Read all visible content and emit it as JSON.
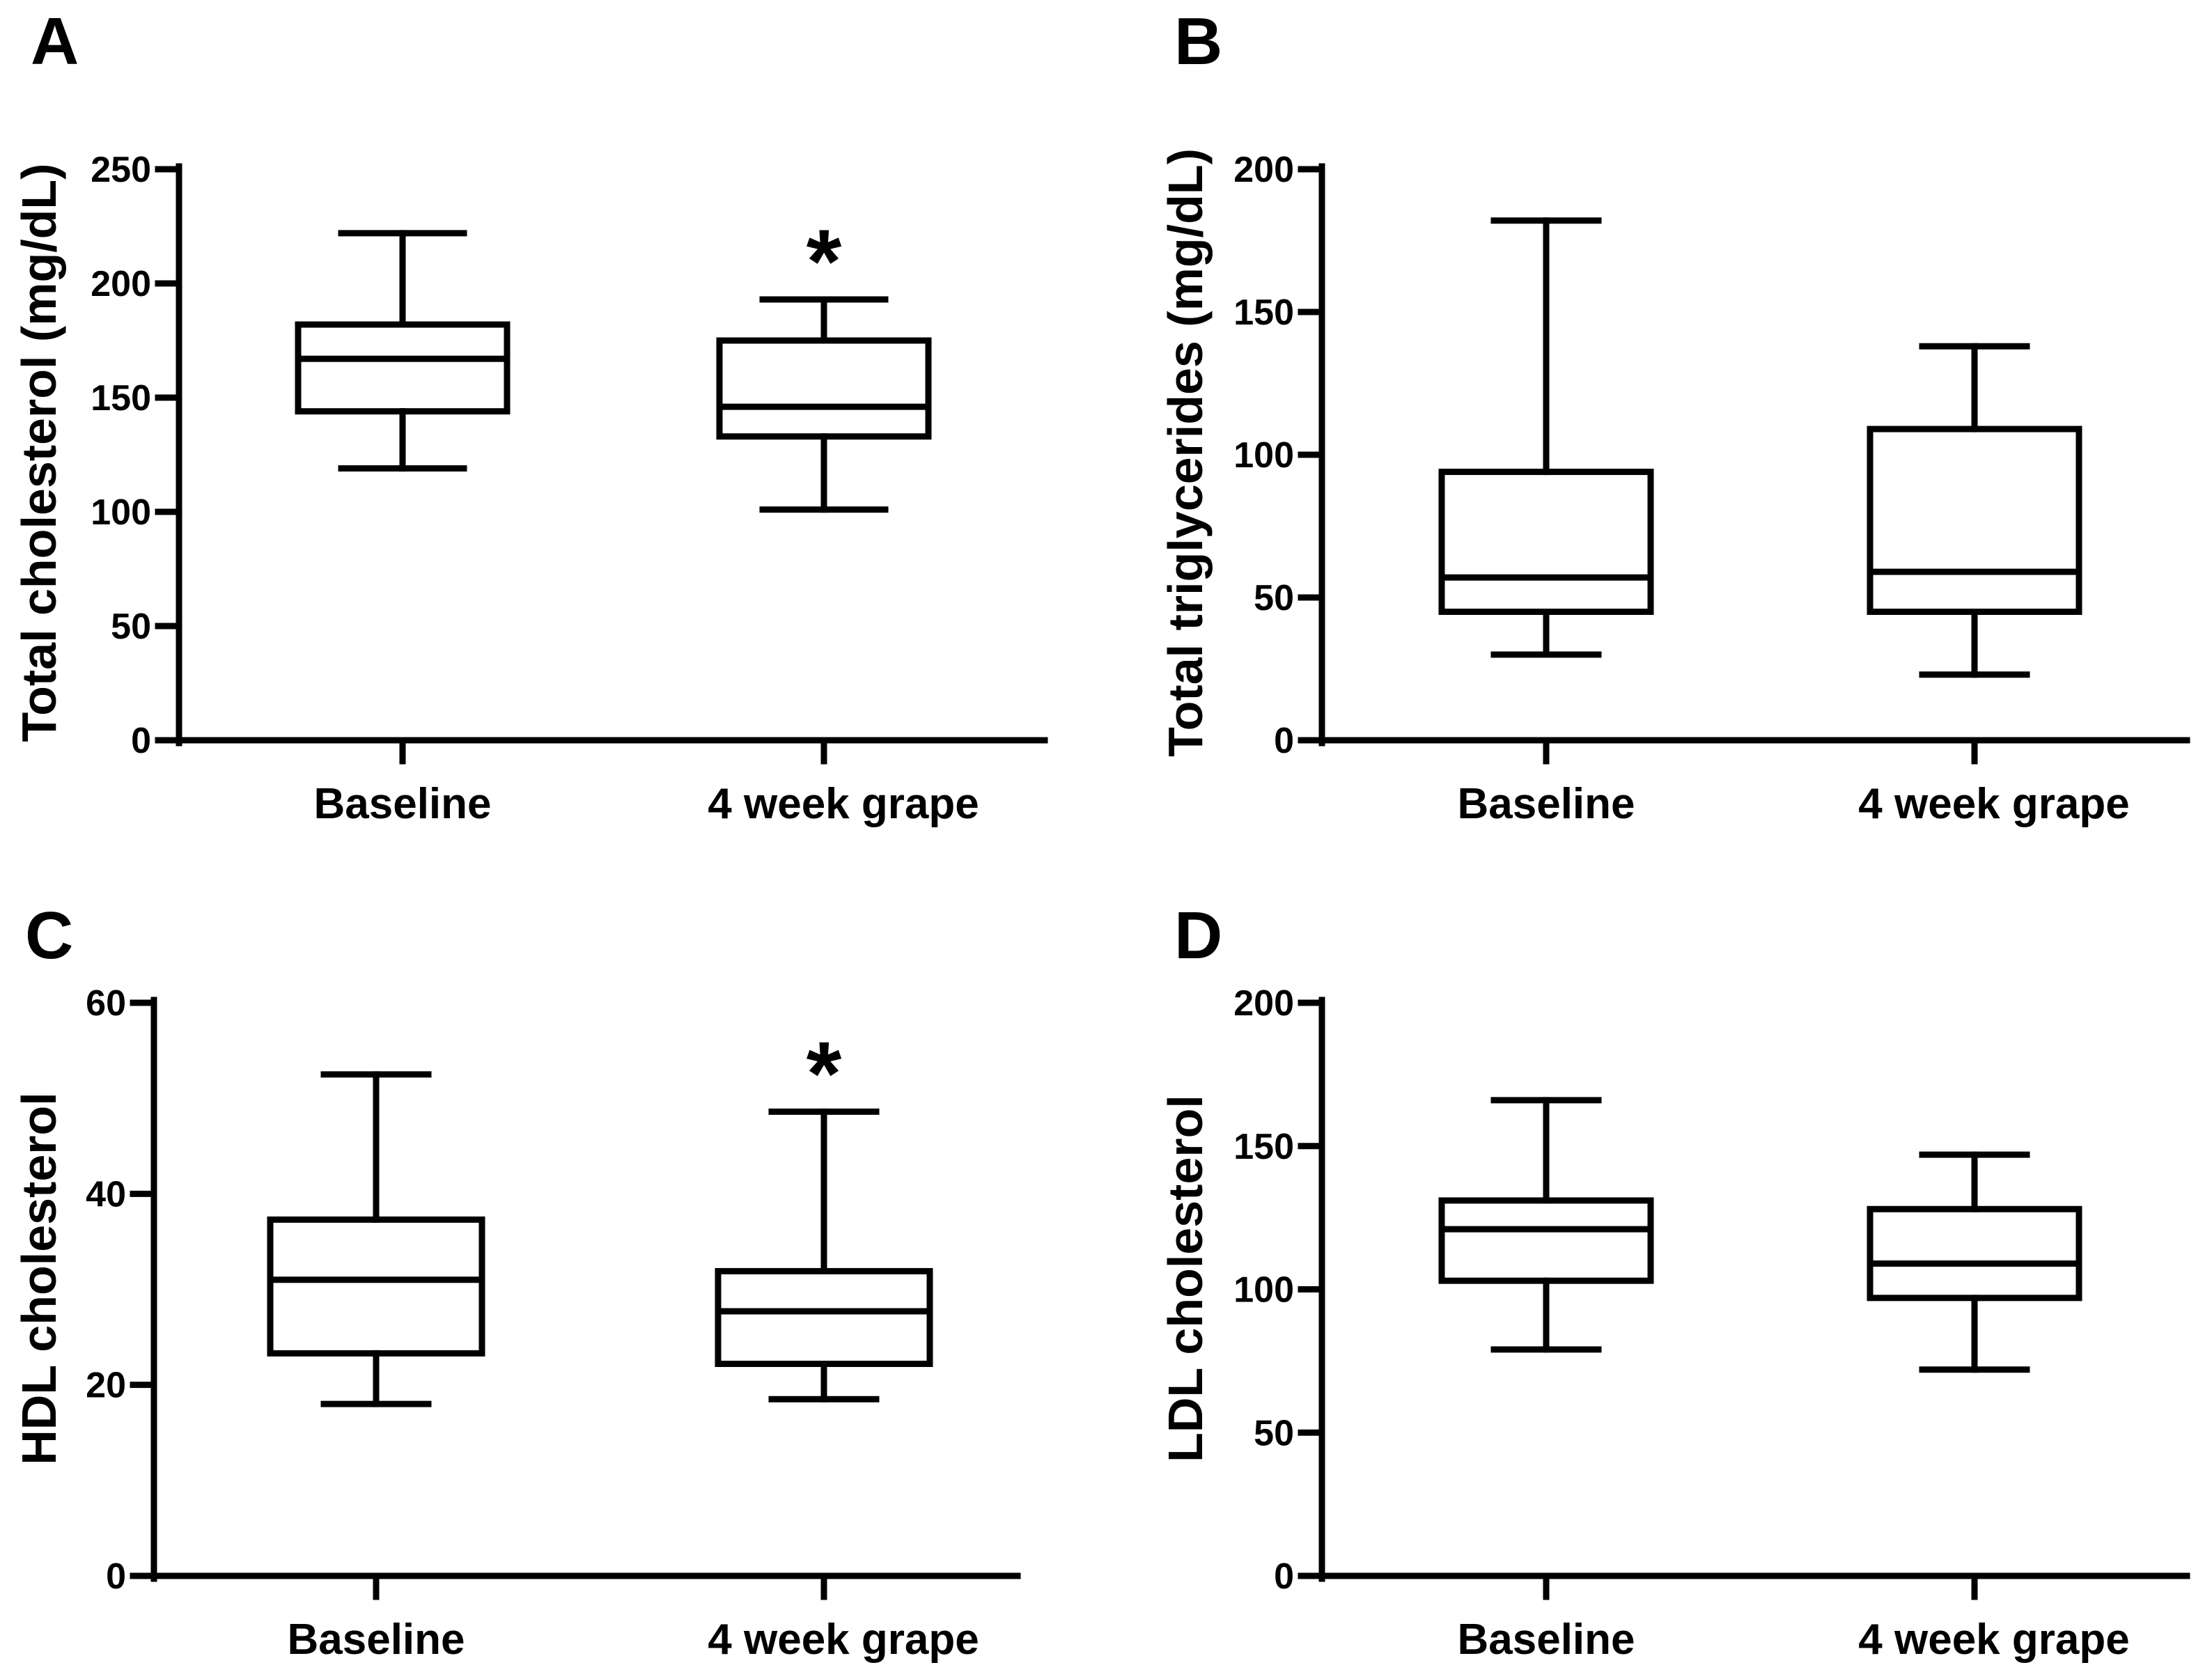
{
  "figure": {
    "panels_count": 4,
    "category_labels": [
      "Baseline",
      "4 week grape"
    ]
  },
  "chart_data": [
    {
      "type": "box",
      "panel": "A",
      "ylabel": "Total cholesterol (mg/dL)",
      "ylim": [
        0,
        250
      ],
      "yticks": [
        0,
        50,
        100,
        150,
        200,
        250
      ],
      "categories": [
        "Baseline",
        "4 week grape"
      ],
      "boxes": [
        {
          "min": 119,
          "q1": 144,
          "median": 167,
          "q3": 182,
          "max": 222,
          "annotation": ""
        },
        {
          "min": 101,
          "q1": 133,
          "median": 146,
          "q3": 175,
          "max": 193,
          "annotation": "*"
        }
      ]
    },
    {
      "type": "box",
      "panel": "B",
      "ylabel": "Total triglycerides (mg/dL)",
      "ylim": [
        0,
        200
      ],
      "yticks": [
        0,
        50,
        100,
        150,
        200
      ],
      "categories": [
        "Baseline",
        "4 week grape"
      ],
      "boxes": [
        {
          "min": 30,
          "q1": 45,
          "median": 57,
          "q3": 94,
          "max": 182,
          "annotation": ""
        },
        {
          "min": 23,
          "q1": 45,
          "median": 59,
          "q3": 109,
          "max": 138,
          "annotation": ""
        }
      ]
    },
    {
      "type": "box",
      "panel": "C",
      "ylabel": "HDL cholesterol",
      "ylim": [
        0,
        60
      ],
      "yticks": [
        0,
        20,
        40,
        60
      ],
      "categories": [
        "Baseline",
        "4 week grape"
      ],
      "boxes": [
        {
          "min": 18,
          "q1": 23.3,
          "median": 31,
          "q3": 37.3,
          "max": 52.5,
          "annotation": ""
        },
        {
          "min": 18.5,
          "q1": 22.2,
          "median": 27.7,
          "q3": 31.9,
          "max": 48.6,
          "annotation": "*"
        }
      ]
    },
    {
      "type": "box",
      "panel": "D",
      "ylabel": "LDL cholesterol",
      "ylim": [
        0,
        200
      ],
      "yticks": [
        0,
        50,
        100,
        150,
        200
      ],
      "categories": [
        "Baseline",
        "4 week grape"
      ],
      "boxes": [
        {
          "min": 79,
          "q1": 103,
          "median": 121,
          "q3": 131,
          "max": 166,
          "annotation": ""
        },
        {
          "min": 72,
          "q1": 97,
          "median": 109,
          "q3": 128,
          "max": 147,
          "annotation": ""
        }
      ]
    }
  ]
}
